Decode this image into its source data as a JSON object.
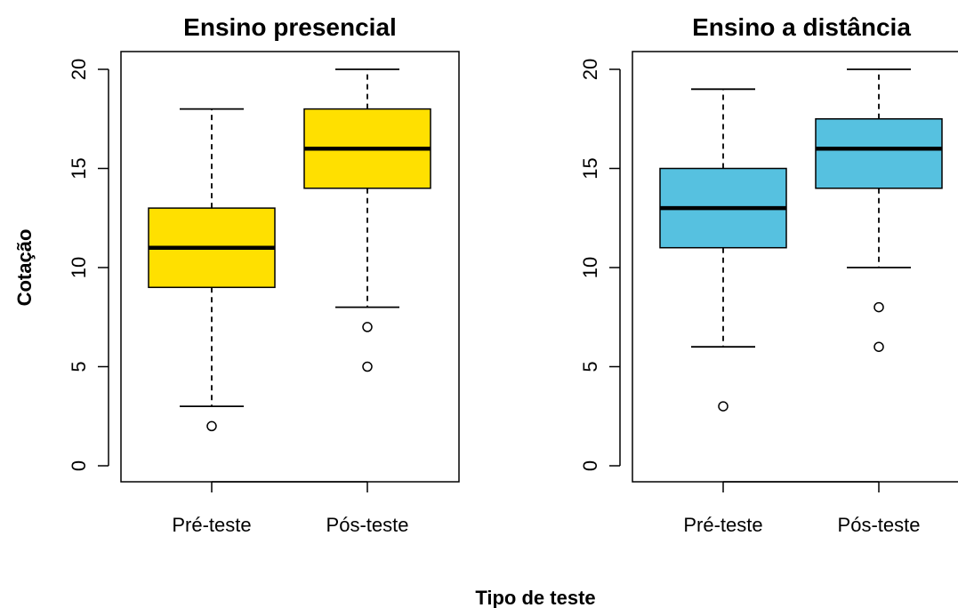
{
  "figure": {
    "ylabel": "Cotação",
    "xlabel": "Tipo de teste"
  },
  "chart_data": [
    {
      "type": "boxplot",
      "title": "Ensino presencial",
      "categories": [
        "Pré-teste",
        "Pós-teste"
      ],
      "ylim": [
        0,
        20
      ],
      "yticks": [
        0,
        5,
        10,
        15,
        20
      ],
      "fill": "#FFE000",
      "series": [
        {
          "category": "Pré-teste",
          "whisker_low": 3,
          "q1": 9,
          "median": 11,
          "q3": 13,
          "whisker_high": 18,
          "outliers": [
            2
          ]
        },
        {
          "category": "Pós-teste",
          "whisker_low": 8,
          "q1": 14,
          "median": 16,
          "q3": 18,
          "whisker_high": 20,
          "outliers": [
            7,
            5
          ]
        }
      ]
    },
    {
      "type": "boxplot",
      "title": "Ensino a distância",
      "categories": [
        "Pré-teste",
        "Pós-teste"
      ],
      "ylim": [
        0,
        20
      ],
      "yticks": [
        0,
        5,
        10,
        15,
        20
      ],
      "fill": "#56C1E0",
      "series": [
        {
          "category": "Pré-teste",
          "whisker_low": 6,
          "q1": 11,
          "median": 13,
          "q3": 15,
          "whisker_high": 19,
          "outliers": [
            3
          ]
        },
        {
          "category": "Pós-teste",
          "whisker_low": 10,
          "q1": 14,
          "median": 16,
          "q3": 17.5,
          "whisker_high": 20,
          "outliers": [
            8,
            6
          ]
        }
      ]
    }
  ]
}
